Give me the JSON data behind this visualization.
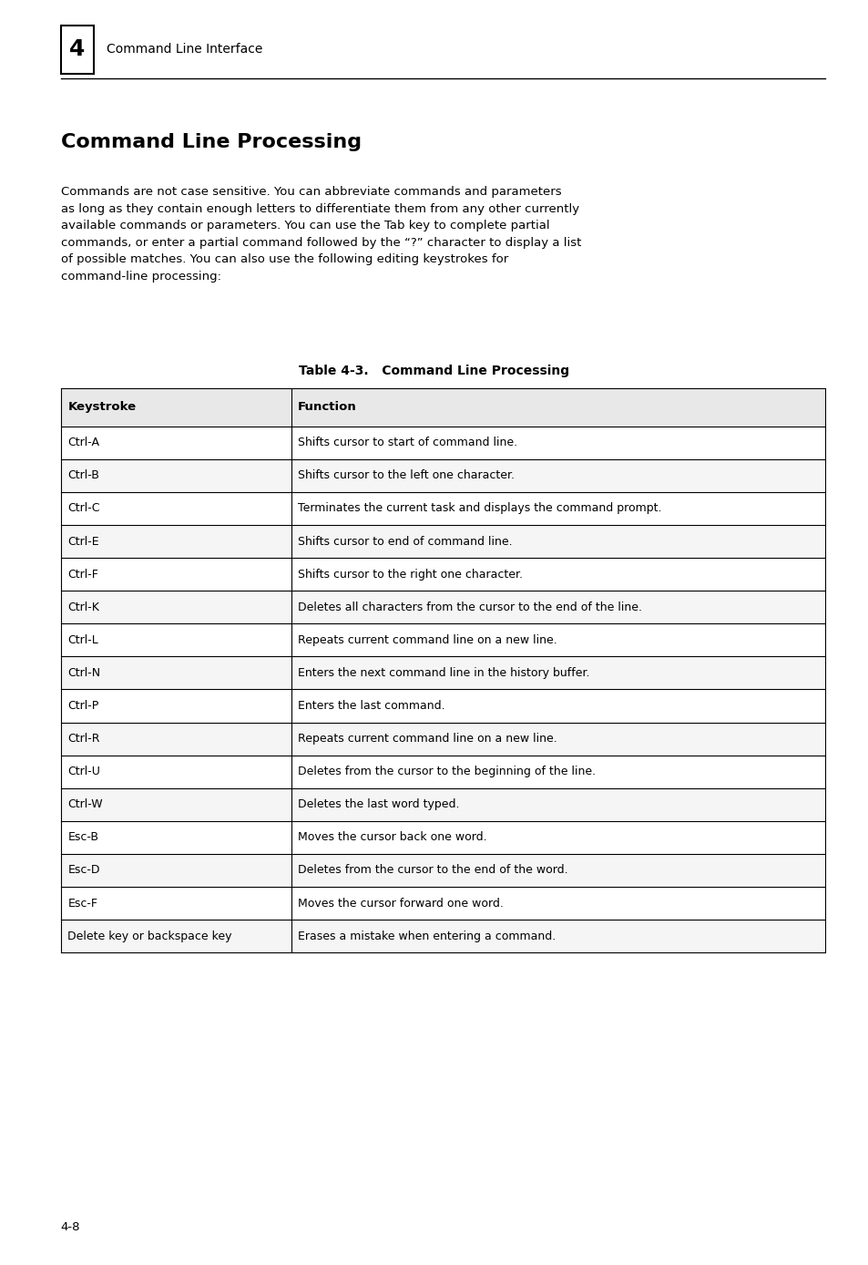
{
  "page_bg": "#ffffff",
  "chapter_num": "4",
  "chapter_title": "Command Line Interface",
  "section_title": "Command Line Processing",
  "body_text": "Commands are not case sensitive. You can abbreviate commands and parameters\nas long as they contain enough letters to differentiate them from any other currently\navailable commands or parameters. You can use the Tab key to complete partial\ncommands, or enter a partial command followed by the “?” character to display a list\nof possible matches. You can also use the following editing keystrokes for\ncommand-line processing:",
  "table_title": "Table 4-3.   Command Line Processing",
  "col_header_1": "Keystroke",
  "col_header_2": "Function",
  "table_rows": [
    [
      "Ctrl-A",
      "Shifts cursor to start of command line."
    ],
    [
      "Ctrl-B",
      "Shifts cursor to the left one character."
    ],
    [
      "Ctrl-C",
      "Terminates the current task and displays the command prompt."
    ],
    [
      "Ctrl-E",
      "Shifts cursor to end of command line."
    ],
    [
      "Ctrl-F",
      "Shifts cursor to the right one character."
    ],
    [
      "Ctrl-K",
      "Deletes all characters from the cursor to the end of the line."
    ],
    [
      "Ctrl-L",
      "Repeats current command line on a new line."
    ],
    [
      "Ctrl-N",
      "Enters the next command line in the history buffer."
    ],
    [
      "Ctrl-P",
      "Enters the last command."
    ],
    [
      "Ctrl-R",
      "Repeats current command line on a new line."
    ],
    [
      "Ctrl-U",
      "Deletes from the cursor to the beginning of the line."
    ],
    [
      "Ctrl-W",
      "Deletes the last word typed."
    ],
    [
      "Esc-B",
      "Moves the cursor back one word."
    ],
    [
      "Esc-D",
      "Deletes from the cursor to the end of the word."
    ],
    [
      "Esc-F",
      "Moves the cursor forward one word."
    ],
    [
      "Delete key or backspace key",
      "Erases a mistake when entering a command."
    ]
  ],
  "footer_text": "4-8",
  "text_color": "#000000",
  "table_border_color": "#000000",
  "header_bg": "#e8e8e8",
  "row_bg_alt": "#f5f5f5",
  "row_bg_main": "#ffffff"
}
